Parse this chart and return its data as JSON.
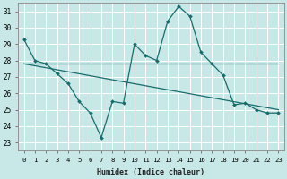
{
  "xlabel": "Humidex (Indice chaleur)",
  "bg_color": "#c8e8e8",
  "grid_color": "#ffffff",
  "line_color": "#1a6b6b",
  "xlim": [
    -0.5,
    23.5
  ],
  "ylim": [
    22.5,
    31.5
  ],
  "xticks": [
    0,
    1,
    2,
    3,
    4,
    5,
    6,
    7,
    8,
    9,
    10,
    11,
    12,
    13,
    14,
    15,
    16,
    17,
    18,
    19,
    20,
    21,
    22,
    23
  ],
  "yticks": [
    23,
    24,
    25,
    26,
    27,
    28,
    29,
    30,
    31
  ],
  "series1_x": [
    0,
    1,
    2,
    3,
    4,
    5,
    6,
    7,
    8,
    9,
    10,
    11,
    12,
    13,
    14,
    15,
    16,
    17,
    18,
    19,
    20,
    21,
    22,
    23
  ],
  "series1_y": [
    29.3,
    28.0,
    27.8,
    27.2,
    26.6,
    25.5,
    24.8,
    23.3,
    25.5,
    25.4,
    29.0,
    28.3,
    28.0,
    30.4,
    31.3,
    30.7,
    28.5,
    27.8,
    27.1,
    25.3,
    25.4,
    25.0,
    24.8,
    24.8
  ],
  "series2_x": [
    0,
    23
  ],
  "series2_y": [
    27.8,
    27.8
  ],
  "series3_x": [
    0,
    23
  ],
  "series3_y": [
    27.8,
    25.0
  ]
}
